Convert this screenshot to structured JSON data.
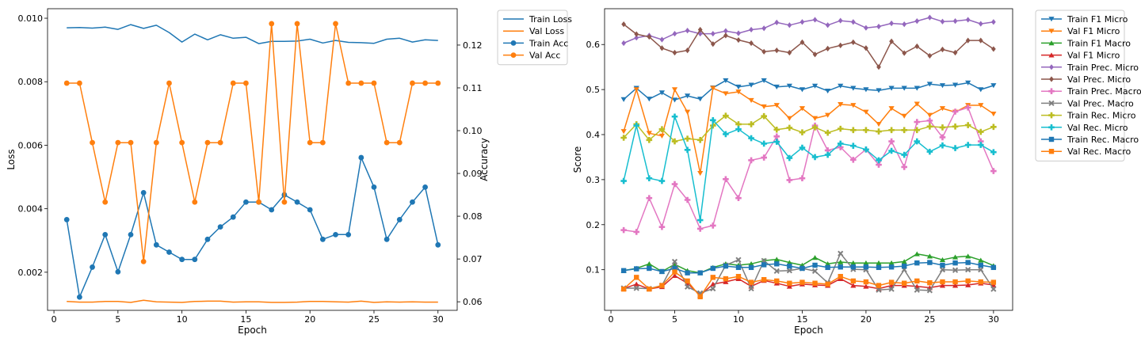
{
  "chart_data": [
    {
      "type": "line",
      "xlabel": "Epoch",
      "ylabel": "Loss",
      "y2label": "Accuracy",
      "xlim": [
        -0.5,
        31.5
      ],
      "ylim": [
        0.0008,
        0.0103
      ],
      "y2lim": [
        0.058,
        0.1285
      ],
      "xticks": [
        0,
        5,
        10,
        15,
        20,
        25,
        30
      ],
      "yticks": [
        0.002,
        0.004,
        0.006,
        0.008,
        0.01
      ],
      "ytick_labels": [
        "0.002",
        "0.004",
        "0.006",
        "0.008",
        "0.010"
      ],
      "y2ticks": [
        0.06,
        0.07,
        0.08,
        0.09,
        0.1,
        0.11,
        0.12
      ],
      "y2tick_labels": [
        "0.06",
        "0.07",
        "0.08",
        "0.09",
        "0.10",
        "0.11",
        "0.12"
      ],
      "legend_position": "outside-right",
      "x": [
        1,
        2,
        3,
        4,
        5,
        6,
        7,
        8,
        9,
        10,
        11,
        12,
        13,
        14,
        15,
        16,
        17,
        18,
        19,
        20,
        21,
        22,
        23,
        24,
        25,
        26,
        27,
        28,
        29,
        30
      ],
      "series": [
        {
          "name": "Train Loss",
          "axis": "left",
          "color": "#1f77b4",
          "marker": "",
          "values": [
            0.0097,
            0.00971,
            0.00969,
            0.00972,
            0.00965,
            0.0098,
            0.00968,
            0.00978,
            0.00955,
            0.00925,
            0.0095,
            0.00932,
            0.00948,
            0.00937,
            0.0094,
            0.0092,
            0.00927,
            0.00927,
            0.00928,
            0.00934,
            0.00922,
            0.0093,
            0.00924,
            0.00923,
            0.00921,
            0.00934,
            0.00937,
            0.00925,
            0.00932,
            0.0093
          ]
        },
        {
          "name": "Val Loss",
          "axis": "left",
          "color": "#ff7f0e",
          "marker": "",
          "values": [
            0.00108,
            0.00106,
            0.00106,
            0.00108,
            0.00108,
            0.00105,
            0.00112,
            0.00107,
            0.00106,
            0.00105,
            0.00108,
            0.00109,
            0.00109,
            0.00106,
            0.00107,
            0.00107,
            0.00105,
            0.00105,
            0.00106,
            0.00108,
            0.00108,
            0.00107,
            0.00106,
            0.00109,
            0.00105,
            0.00107,
            0.00106,
            0.00107,
            0.00106,
            0.00106
          ]
        },
        {
          "name": "Train Acc",
          "axis": "right",
          "color": "#1f77b4",
          "marker": "o",
          "values": [
            0.0792,
            0.0611,
            0.0681,
            0.0757,
            0.067,
            0.0757,
            0.0855,
            0.0733,
            0.0716,
            0.0699,
            0.0699,
            0.0746,
            0.0775,
            0.0798,
            0.0833,
            0.0833,
            0.0815,
            0.085,
            0.0833,
            0.0815,
            0.0746,
            0.0757,
            0.0757,
            0.0937,
            0.0868,
            0.0746,
            0.0792,
            0.0833,
            0.0868,
            0.0733
          ]
        },
        {
          "name": "Val Acc",
          "axis": "right",
          "color": "#ff7f0e",
          "marker": "o",
          "values": [
            0.1111,
            0.1111,
            0.0972,
            0.0833,
            0.0972,
            0.0972,
            0.0694,
            0.0972,
            0.1111,
            0.0972,
            0.0833,
            0.0972,
            0.0972,
            0.1111,
            0.1111,
            0.0833,
            0.125,
            0.0833,
            0.125,
            0.0972,
            0.0972,
            0.125,
            0.1111,
            0.1111,
            0.1111,
            0.0972,
            0.0972,
            0.1111,
            0.1111,
            0.1111
          ]
        }
      ]
    },
    {
      "type": "line",
      "xlabel": "Epoch",
      "ylabel": "Score",
      "xlim": [
        -0.5,
        31.5
      ],
      "ylim": [
        0.0098,
        0.6795
      ],
      "xticks": [
        0,
        5,
        10,
        15,
        20,
        25,
        30
      ],
      "yticks": [
        0.1,
        0.2,
        0.3,
        0.4,
        0.5,
        0.6
      ],
      "ytick_labels": [
        "0.1",
        "0.2",
        "0.3",
        "0.4",
        "0.5",
        "0.6"
      ],
      "legend_position": "outside-right",
      "x": [
        1,
        2,
        3,
        4,
        5,
        6,
        7,
        8,
        9,
        10,
        11,
        12,
        13,
        14,
        15,
        16,
        17,
        18,
        19,
        20,
        21,
        22,
        23,
        24,
        25,
        26,
        27,
        28,
        29,
        30
      ],
      "series": [
        {
          "name": "Train F1 Micro",
          "color": "#1f77b4",
          "marker": "v",
          "values": [
            0.478,
            0.503,
            0.479,
            0.493,
            0.477,
            0.486,
            0.479,
            0.504,
            0.52,
            0.506,
            0.51,
            0.52,
            0.506,
            0.508,
            0.5,
            0.508,
            0.497,
            0.508,
            0.503,
            0.5,
            0.498,
            0.503,
            0.503,
            0.503,
            0.512,
            0.509,
            0.51,
            0.515,
            0.5,
            0.509
          ]
        },
        {
          "name": "Val F1 Micro",
          "color": "#ff7f0e",
          "marker": "v",
          "values": [
            0.407,
            0.5,
            0.403,
            0.397,
            0.5,
            0.45,
            0.314,
            0.503,
            0.491,
            0.495,
            0.476,
            0.462,
            0.465,
            0.436,
            0.458,
            0.436,
            0.443,
            0.467,
            0.465,
            0.45,
            0.423,
            0.458,
            0.441,
            0.468,
            0.443,
            0.458,
            0.45,
            0.465,
            0.465,
            0.446
          ]
        },
        {
          "name": "Train F1 Macro",
          "color": "#2ca02c",
          "marker": "^",
          "values": [
            0.098,
            0.103,
            0.113,
            0.096,
            0.112,
            0.098,
            0.093,
            0.105,
            0.113,
            0.11,
            0.113,
            0.12,
            0.123,
            0.116,
            0.11,
            0.127,
            0.113,
            0.117,
            0.115,
            0.115,
            0.115,
            0.115,
            0.118,
            0.135,
            0.13,
            0.122,
            0.128,
            0.13,
            0.121,
            0.109
          ]
        },
        {
          "name": "Val F1 Micro",
          "color": "#d62728",
          "marker": "^",
          "values": [
            0.058,
            0.068,
            0.057,
            0.062,
            0.087,
            0.07,
            0.043,
            0.068,
            0.073,
            0.08,
            0.063,
            0.076,
            0.07,
            0.063,
            0.068,
            0.066,
            0.065,
            0.08,
            0.065,
            0.063,
            0.058,
            0.065,
            0.065,
            0.063,
            0.06,
            0.065,
            0.065,
            0.066,
            0.07,
            0.066
          ]
        },
        {
          "name": "Train Prec. Micro",
          "color": "#9467bd",
          "marker": "D",
          "values": [
            0.603,
            0.615,
            0.62,
            0.611,
            0.624,
            0.631,
            0.624,
            0.624,
            0.63,
            0.625,
            0.633,
            0.636,
            0.649,
            0.643,
            0.65,
            0.655,
            0.643,
            0.653,
            0.65,
            0.637,
            0.64,
            0.647,
            0.645,
            0.652,
            0.66,
            0.651,
            0.652,
            0.655,
            0.646,
            0.65
          ]
        },
        {
          "name": "Val Prec. Micro",
          "color": "#8c564b",
          "marker": "D",
          "values": [
            0.645,
            0.623,
            0.617,
            0.592,
            0.582,
            0.587,
            0.633,
            0.601,
            0.62,
            0.61,
            0.603,
            0.584,
            0.587,
            0.582,
            0.605,
            0.578,
            0.591,
            0.598,
            0.605,
            0.592,
            0.55,
            0.607,
            0.581,
            0.596,
            0.575,
            0.589,
            0.582,
            0.609,
            0.609,
            0.59
          ]
        },
        {
          "name": "Train Prec. Macro",
          "color": "#e377c2",
          "marker": "P",
          "values": [
            0.188,
            0.184,
            0.259,
            0.195,
            0.29,
            0.255,
            0.191,
            0.198,
            0.301,
            0.259,
            0.343,
            0.349,
            0.396,
            0.299,
            0.303,
            0.42,
            0.365,
            0.372,
            0.344,
            0.367,
            0.333,
            0.385,
            0.328,
            0.428,
            0.431,
            0.394,
            0.451,
            0.46,
            0.385,
            0.319
          ]
        },
        {
          "name": "Val Prec. Macro",
          "color": "#7f7f7f",
          "marker": "X",
          "values": [
            0.059,
            0.059,
            0.058,
            0.065,
            0.118,
            0.062,
            0.048,
            0.058,
            0.11,
            0.122,
            0.058,
            0.12,
            0.097,
            0.098,
            0.103,
            0.097,
            0.071,
            0.136,
            0.101,
            0.1,
            0.055,
            0.057,
            0.1,
            0.055,
            0.054,
            0.1,
            0.099,
            0.1,
            0.1,
            0.057
          ]
        },
        {
          "name": "Train Rec. Micro",
          "color": "#bcbd22",
          "marker": "P",
          "values": [
            0.393,
            0.423,
            0.388,
            0.412,
            0.385,
            0.391,
            0.388,
            0.42,
            0.442,
            0.423,
            0.423,
            0.441,
            0.411,
            0.415,
            0.405,
            0.416,
            0.404,
            0.413,
            0.41,
            0.41,
            0.407,
            0.41,
            0.41,
            0.41,
            0.418,
            0.416,
            0.418,
            0.421,
            0.406,
            0.417
          ]
        },
        {
          "name": "Val Rec. Micro",
          "color": "#17becf",
          "marker": "P",
          "values": [
            0.297,
            0.42,
            0.303,
            0.297,
            0.44,
            0.366,
            0.21,
            0.432,
            0.401,
            0.412,
            0.392,
            0.38,
            0.384,
            0.348,
            0.371,
            0.35,
            0.355,
            0.38,
            0.375,
            0.367,
            0.343,
            0.364,
            0.355,
            0.385,
            0.362,
            0.376,
            0.37,
            0.377,
            0.377,
            0.361
          ]
        },
        {
          "name": "Train Rec. Macro",
          "color": "#1f77b4",
          "marker": "s",
          "values": [
            0.098,
            0.102,
            0.103,
            0.096,
            0.103,
            0.093,
            0.093,
            0.103,
            0.108,
            0.105,
            0.105,
            0.111,
            0.113,
            0.108,
            0.103,
            0.11,
            0.105,
            0.106,
            0.106,
            0.106,
            0.105,
            0.106,
            0.108,
            0.115,
            0.116,
            0.11,
            0.115,
            0.116,
            0.11,
            0.105
          ]
        },
        {
          "name": "Val Rec. Macro",
          "color": "#ff7f0e",
          "marker": "s",
          "values": [
            0.057,
            0.083,
            0.057,
            0.065,
            0.095,
            0.075,
            0.04,
            0.083,
            0.08,
            0.085,
            0.072,
            0.078,
            0.075,
            0.07,
            0.072,
            0.07,
            0.068,
            0.085,
            0.075,
            0.073,
            0.065,
            0.072,
            0.07,
            0.075,
            0.071,
            0.073,
            0.073,
            0.075,
            0.073,
            0.072
          ]
        }
      ]
    }
  ]
}
